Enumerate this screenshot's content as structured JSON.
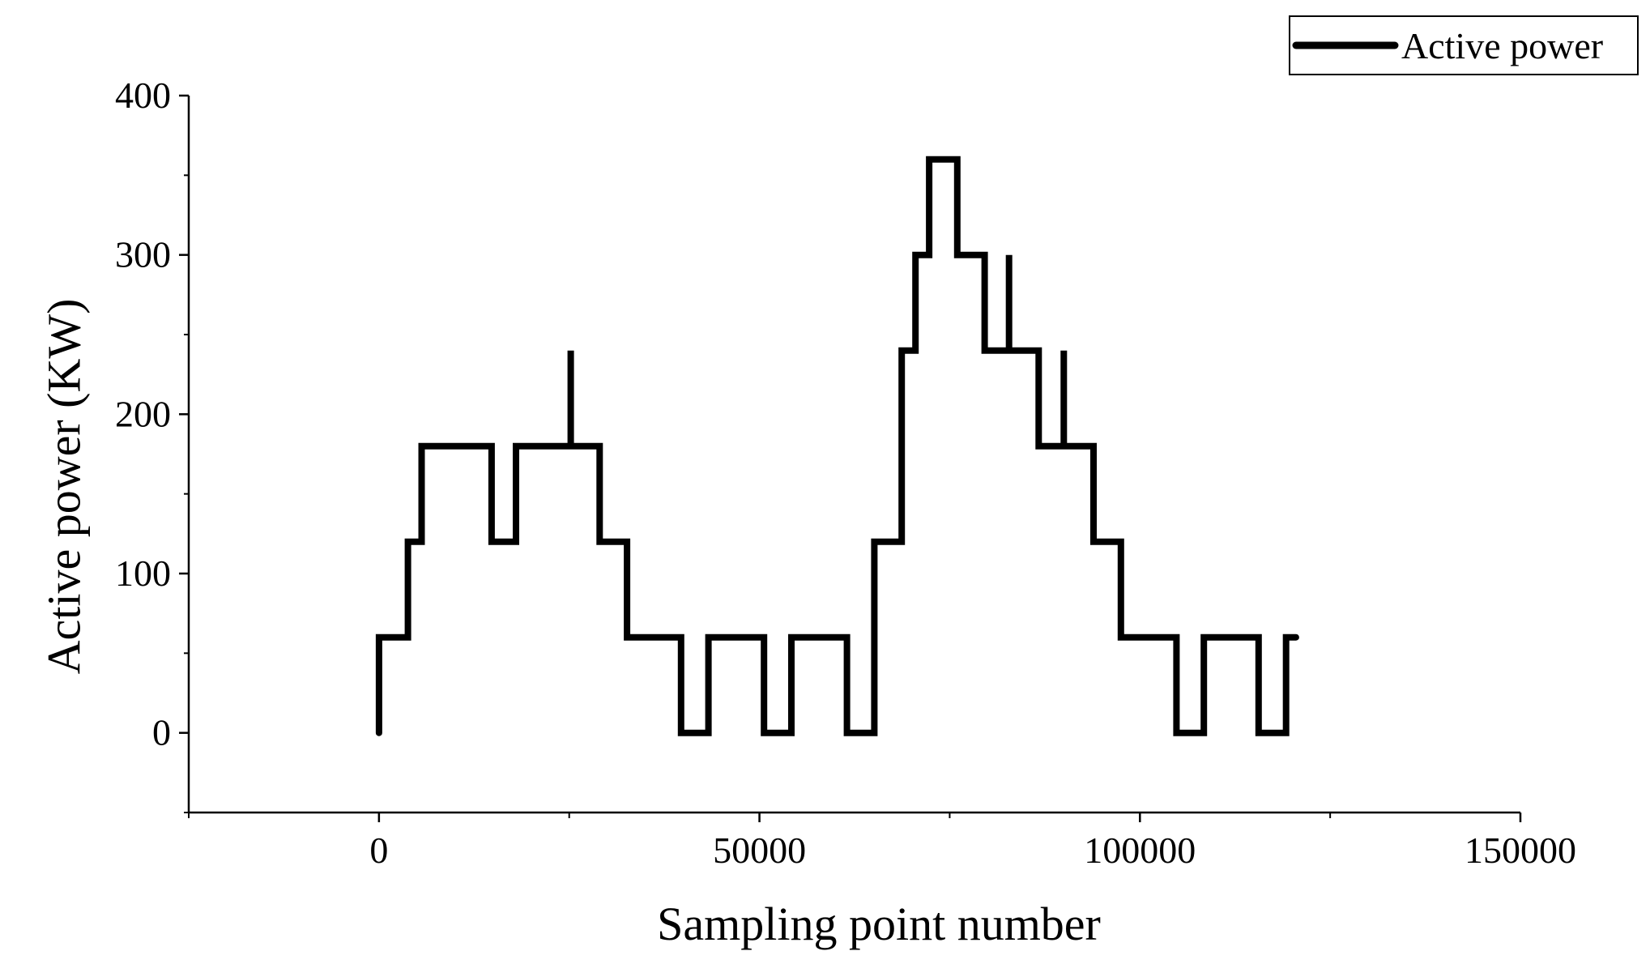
{
  "chart_data": {
    "type": "line",
    "title": "",
    "xlabel": "Sampling point number",
    "ylabel": "Active power (KW)",
    "xlim": [
      -25000,
      150000
    ],
    "ylim": [
      -50,
      400
    ],
    "x_ticks": [
      0,
      50000,
      100000,
      150000
    ],
    "x_tick_labels": [
      "0",
      "50000",
      "100000",
      "150000"
    ],
    "y_ticks": [
      0,
      100,
      200,
      300,
      400
    ],
    "y_tick_labels": [
      "0",
      "100",
      "200",
      "300",
      "400"
    ],
    "grid": false,
    "legend_position": "top-right",
    "line_color": "#000000",
    "series": [
      {
        "name": "Active power",
        "step": "post",
        "points": [
          [
            0,
            0
          ],
          [
            0,
            60
          ],
          [
            3800,
            60
          ],
          [
            3800,
            120
          ],
          [
            5600,
            120
          ],
          [
            5600,
            180
          ],
          [
            14800,
            180
          ],
          [
            14800,
            120
          ],
          [
            18000,
            120
          ],
          [
            18000,
            180
          ],
          [
            25200,
            180
          ],
          [
            25200,
            240
          ],
          [
            25200,
            180
          ],
          [
            29000,
            180
          ],
          [
            29000,
            120
          ],
          [
            32600,
            120
          ],
          [
            32600,
            60
          ],
          [
            39700,
            60
          ],
          [
            39700,
            0
          ],
          [
            43300,
            0
          ],
          [
            43300,
            60
          ],
          [
            50600,
            60
          ],
          [
            50600,
            0
          ],
          [
            54200,
            0
          ],
          [
            54200,
            60
          ],
          [
            61500,
            60
          ],
          [
            61500,
            0
          ],
          [
            65100,
            0
          ],
          [
            65100,
            120
          ],
          [
            68700,
            120
          ],
          [
            68700,
            240
          ],
          [
            70500,
            240
          ],
          [
            70500,
            300
          ],
          [
            72300,
            300
          ],
          [
            72300,
            360
          ],
          [
            76000,
            360
          ],
          [
            76000,
            300
          ],
          [
            79600,
            300
          ],
          [
            79600,
            240
          ],
          [
            82800,
            240
          ],
          [
            82800,
            300
          ],
          [
            82800,
            240
          ],
          [
            86700,
            240
          ],
          [
            86700,
            180
          ],
          [
            90000,
            180
          ],
          [
            90000,
            240
          ],
          [
            90000,
            180
          ],
          [
            93900,
            180
          ],
          [
            93900,
            120
          ],
          [
            97500,
            120
          ],
          [
            97500,
            60
          ],
          [
            104800,
            60
          ],
          [
            104800,
            0
          ],
          [
            108400,
            0
          ],
          [
            108400,
            60
          ],
          [
            115600,
            60
          ],
          [
            115600,
            0
          ],
          [
            119200,
            0
          ],
          [
            119200,
            60
          ],
          [
            120500,
            60
          ]
        ]
      }
    ]
  }
}
